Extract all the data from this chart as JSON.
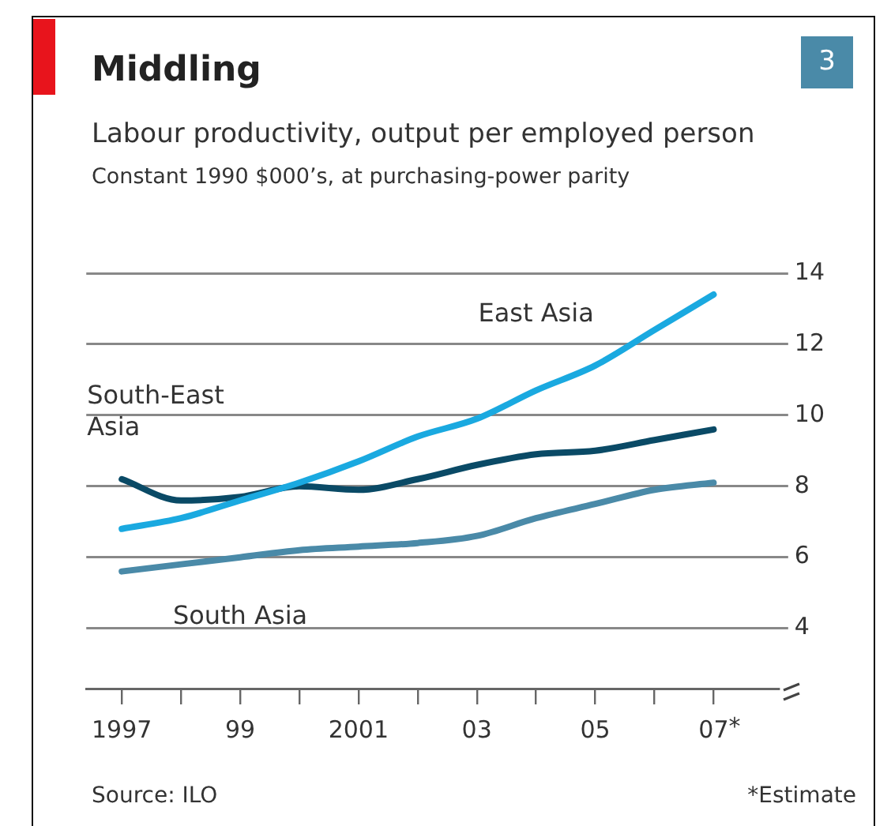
{
  "chart_data": {
    "type": "line",
    "title": "Middling",
    "subtitle": "Labour productivity, output per employed person",
    "ylabel": "Constant 1990 $000’s, at purchasing-power parity",
    "annotations": [
      "3",
      "Source: ILO",
      "*Estimate",
      "*"
    ],
    "x": [
      1997,
      1998,
      1999,
      2000,
      2001,
      2002,
      2003,
      2004,
      2005,
      2006,
      2007
    ],
    "series": [
      {
        "name": "East Asia",
        "color": "#1aa9e0",
        "values": [
          6.8,
          7.1,
          7.6,
          8.1,
          8.7,
          9.4,
          9.9,
          10.7,
          11.4,
          12.4,
          13.4
        ]
      },
      {
        "name": "South-East Asia",
        "color": "#0a4a66",
        "values": [
          8.2,
          7.6,
          7.7,
          8.0,
          7.9,
          8.2,
          8.6,
          8.9,
          9.0,
          9.3,
          9.6
        ]
      },
      {
        "name": "South Asia",
        "color": "#4a8aa8",
        "values": [
          5.6,
          5.8,
          6.0,
          6.2,
          6.3,
          6.4,
          6.6,
          7.1,
          7.5,
          7.9,
          8.1
        ]
      }
    ],
    "xlim": [
      1996.4,
      2008.1
    ],
    "xticks": [
      {
        "value": 1997,
        "label": "1997"
      },
      {
        "value": 1998,
        "label": null
      },
      {
        "value": 1999,
        "label": "99"
      },
      {
        "value": 2000,
        "label": null
      },
      {
        "value": 2001,
        "label": "2001"
      },
      {
        "value": 2002,
        "label": null
      },
      {
        "value": 2003,
        "label": "03"
      },
      {
        "value": 2004,
        "label": null
      },
      {
        "value": 2005,
        "label": "05"
      },
      {
        "value": 2006,
        "label": null
      },
      {
        "value": 2007,
        "label": "07"
      }
    ],
    "ylim": [
      2.3,
      14
    ],
    "yticks": [
      4,
      6,
      8,
      10,
      12,
      14
    ],
    "grid": "y",
    "legend": false,
    "marker": "none",
    "line_style": "solid"
  }
}
